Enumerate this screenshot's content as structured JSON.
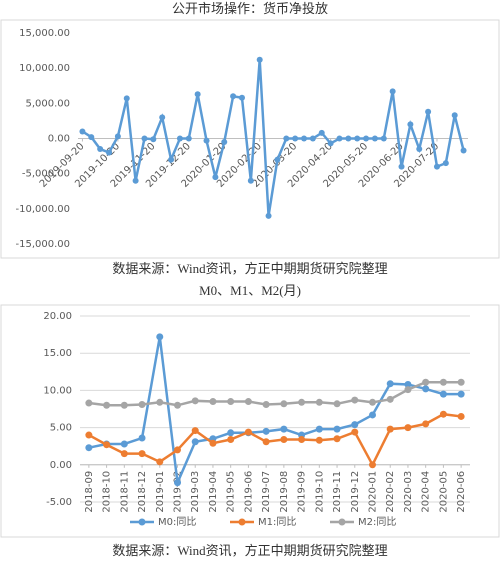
{
  "chart_data": [
    {
      "type": "line",
      "title": "公开市场操作：货币净投放",
      "source": "数据来源：Wind资讯，方正中期期货研究院整理",
      "categories": [
        "2019-09-20",
        null,
        null,
        null,
        "2019-10-20",
        null,
        null,
        null,
        "2019-11-20",
        null,
        null,
        null,
        "2019-12-20",
        null,
        null,
        null,
        "2020-01-20",
        null,
        null,
        null,
        "2020-02-20",
        null,
        null,
        null,
        "2020-03-20",
        null,
        null,
        null,
        "2020-04-20",
        null,
        null,
        null,
        "2020-05-20",
        null,
        null,
        null,
        "2020-06-20",
        null,
        null,
        null,
        "2020-07-20",
        null,
        null,
        null
      ],
      "series": [
        {
          "name": null,
          "color": "#5b9bd5",
          "values": [
            1000,
            200,
            -1500,
            -2000,
            300,
            5700,
            -6000,
            0,
            -100,
            3000,
            -3000,
            0,
            0,
            6300,
            -300,
            -5500,
            -500,
            6000,
            5800,
            -6000,
            11200,
            -11000,
            -3000,
            0,
            0,
            0,
            0,
            800,
            -700,
            0,
            0,
            0,
            0,
            0,
            0,
            6700,
            -4000,
            2000,
            -1500,
            3800,
            -4000,
            -3500,
            3300,
            -1700
          ]
        }
      ],
      "ylim": [
        -15000,
        15000
      ],
      "yticks": [
        {
          "value": 15000,
          "label": "15,000.00"
        },
        {
          "value": 10000,
          "label": "10,000.00"
        },
        {
          "value": 5000,
          "label": "5,000.00"
        },
        {
          "value": 0,
          "label": "0.00"
        },
        {
          "value": -5000,
          "label": "-5,000.00"
        },
        {
          "value": -10000,
          "label": "-10,000.00"
        },
        {
          "value": -15000,
          "label": "-15,000.00"
        }
      ],
      "grid": false,
      "legend": null
    },
    {
      "type": "line",
      "title": "M0、M1、M2(月)",
      "source": "数据来源：Wind资讯，方正中期期货研究院整理",
      "categories": [
        "2018-09",
        "2018-10",
        "2018-11",
        "2018-12",
        "2019-01",
        "2019-02",
        "2019-03",
        "2019-04",
        "2019-05",
        "2019-06",
        "2019-07",
        "2019-08",
        "2019-09",
        "2019-10",
        "2019-11",
        "2019-12",
        "2020-01",
        "2020-02",
        "2020-03",
        "2020-04",
        "2020-05",
        "2020-06"
      ],
      "series": [
        {
          "name": "M0:同比",
          "color": "#5b9bd5",
          "values": [
            2.3,
            2.8,
            2.8,
            3.6,
            17.2,
            -2.4,
            3.1,
            3.5,
            4.3,
            4.3,
            4.5,
            4.8,
            4.0,
            4.8,
            4.8,
            5.4,
            6.7,
            10.9,
            10.8,
            10.2,
            9.5,
            9.5
          ]
        },
        {
          "name": "M1:同比",
          "color": "#ed7d31",
          "values": [
            4.0,
            2.7,
            1.5,
            1.5,
            0.4,
            2.0,
            4.6,
            2.9,
            3.4,
            4.4,
            3.1,
            3.4,
            3.4,
            3.3,
            3.5,
            4.4,
            0.0,
            4.8,
            5.0,
            5.5,
            6.8,
            6.5
          ]
        },
        {
          "name": "M2:同比",
          "color": "#a5a5a5",
          "values": [
            8.3,
            8.0,
            8.0,
            8.1,
            8.4,
            8.0,
            8.6,
            8.5,
            8.5,
            8.5,
            8.1,
            8.2,
            8.4,
            8.4,
            8.2,
            8.7,
            8.4,
            8.8,
            10.1,
            11.1,
            11.1,
            11.1
          ]
        }
      ],
      "ylim": [
        -5,
        20
      ],
      "yticks": [
        {
          "value": 20,
          "label": "20.00"
        },
        {
          "value": 15,
          "label": "15.00"
        },
        {
          "value": 10,
          "label": "10.00"
        },
        {
          "value": 5,
          "label": "5.00"
        },
        {
          "value": 0,
          "label": "0.00"
        },
        {
          "value": -5,
          "label": "-5.00"
        }
      ],
      "grid": true,
      "legend": "bottom"
    }
  ]
}
